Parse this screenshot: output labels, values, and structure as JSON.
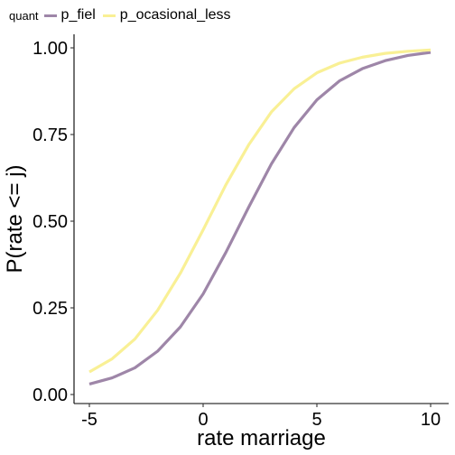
{
  "chart_data": {
    "type": "line",
    "title": "",
    "xlabel": "rate marriage",
    "ylabel": "P(rate <= j)",
    "xlim": [
      -5,
      10
    ],
    "ylim": [
      0,
      1
    ],
    "xticks": [
      -5,
      0,
      5,
      10
    ],
    "xtick_labels": [
      "-5",
      "0",
      "5",
      "10"
    ],
    "yticks": [
      0,
      0.25,
      0.5,
      0.75,
      1.0
    ],
    "ytick_labels": [
      "0.00",
      "0.25",
      "0.50",
      "0.75",
      "1.00"
    ],
    "grid": false,
    "legend": {
      "title": "quant",
      "placement": "top-left"
    },
    "x": [
      -5,
      -4,
      -3,
      -2,
      -1,
      0,
      1,
      2,
      3,
      4,
      5,
      6,
      7,
      8,
      9,
      10
    ],
    "series": [
      {
        "name": "p_fiel",
        "color": "#9e86a8",
        "values": [
          0.03,
          0.048,
          0.077,
          0.125,
          0.195,
          0.29,
          0.41,
          0.54,
          0.665,
          0.77,
          0.85,
          0.905,
          0.94,
          0.963,
          0.978,
          0.987
        ]
      },
      {
        "name": "p_ocasional_less",
        "color": "#f9f095",
        "values": [
          0.065,
          0.103,
          0.16,
          0.243,
          0.35,
          0.475,
          0.605,
          0.72,
          0.815,
          0.882,
          0.928,
          0.956,
          0.973,
          0.984,
          0.99,
          0.994
        ]
      }
    ]
  }
}
